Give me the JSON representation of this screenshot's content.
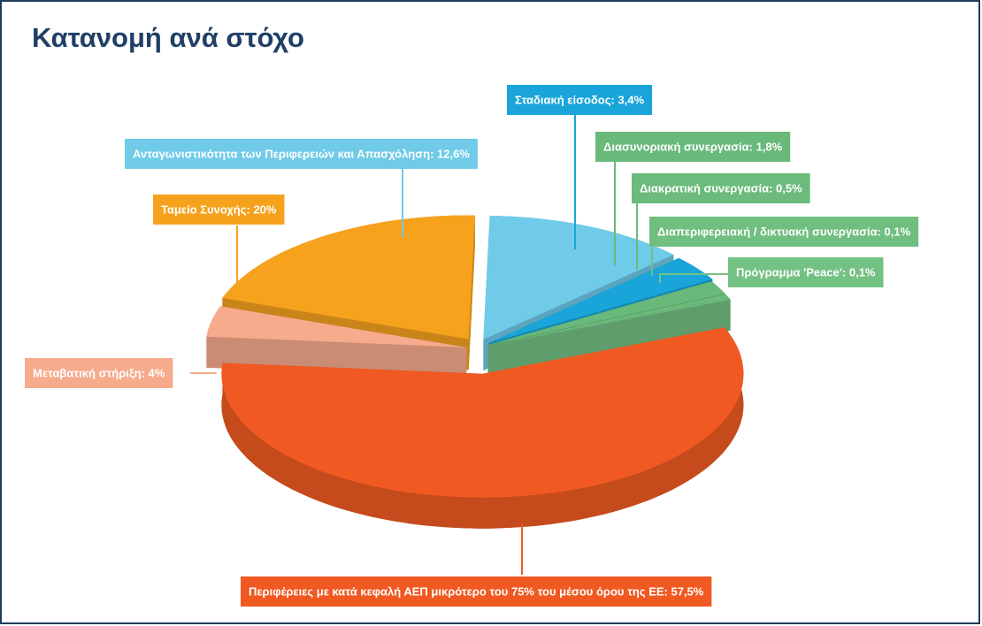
{
  "chart_data": {
    "type": "pie",
    "title": "Κατανομή ανά στόχο",
    "values": [
      57.5,
      4,
      20,
      12.6,
      3.4,
      1.8,
      0.5,
      0.1,
      0.1
    ],
    "value_labels": [
      "Περιφέρειες με κατά κεφαλή ΑΕΠ μικρότερο του 75% του μέσου όρου της ΕΕ: 57,5%",
      "Μεταβατική στήριξη: 4%",
      "Ταμείο Συνοχής: 20%",
      "Ανταγωνιστικότητα των Περιφερειών και Απασχόληση: 12,6%",
      "Σταδιακή είσοδος: 3,4%",
      "Διασυνοριακή συνεργασία: 1,8%",
      "Διακρατική συνεργασία: 0,5%",
      "Διαπεριφερειακή / δικτυακή συνεργασία: 0,1%",
      "Πρόγραμμα 'Peace': 0,1%"
    ],
    "colors": [
      "#f05a22",
      "#f6ab8c",
      "#f6a21d",
      "#6fcbe8",
      "#19a5d9",
      "#69b97a",
      "#6cbb7c",
      "#70be80",
      "#74c184"
    ]
  }
}
